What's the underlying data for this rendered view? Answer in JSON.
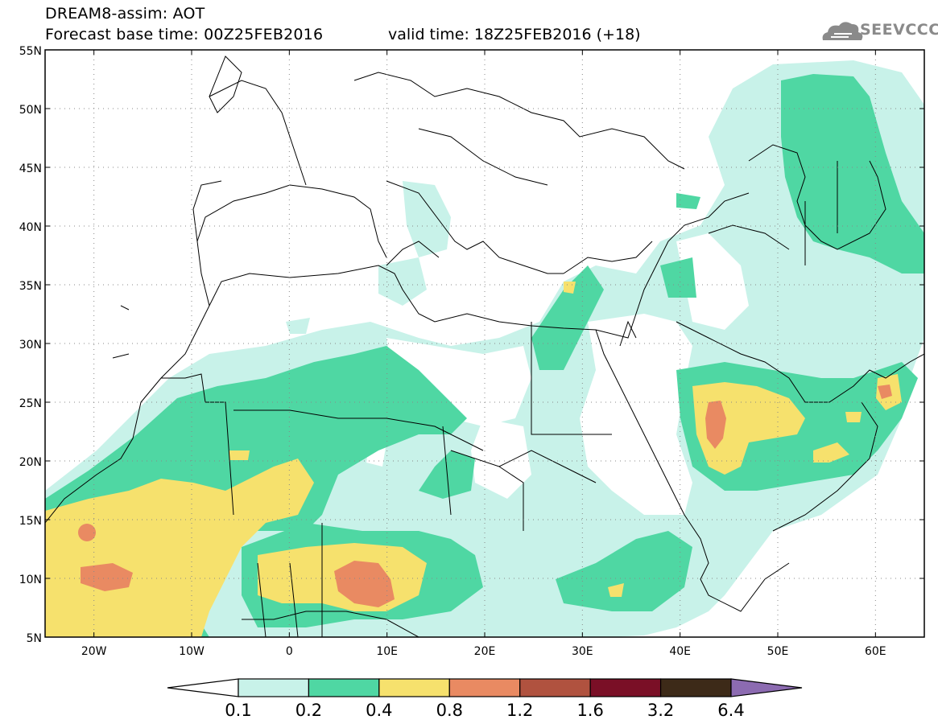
{
  "header": {
    "title_line1": "DREAM8-assim: AOT",
    "title_line2": "Forecast base time: 00Z25FEB2016",
    "valid_time": "valid time: 18Z25FEB2016 (+18)"
  },
  "logo": {
    "text": "SEEVCCC",
    "icon": "cloud-icon"
  },
  "map": {
    "lat_labels": [
      "55N",
      "50N",
      "45N",
      "40N",
      "35N",
      "30N",
      "25N",
      "20N",
      "15N",
      "10N",
      "5N"
    ],
    "lon_labels": [
      "20W",
      "10W",
      "0",
      "10E",
      "20E",
      "30E",
      "40E",
      "50E",
      "60E"
    ],
    "lon_range": [
      -25,
      65
    ],
    "lat_range": [
      5,
      55
    ],
    "grid": "dotted"
  },
  "colorbar": {
    "labels": [
      "0.1",
      "0.2",
      "0.4",
      "0.8",
      "1.2",
      "1.6",
      "3.2",
      "6.4"
    ],
    "colors": [
      "#ffffff",
      "#c8f2e9",
      "#4fd7a3",
      "#f6e16d",
      "#e98a62",
      "#b0523f",
      "#7a0f26",
      "#3d2a18",
      "#8c6bb1"
    ]
  }
}
